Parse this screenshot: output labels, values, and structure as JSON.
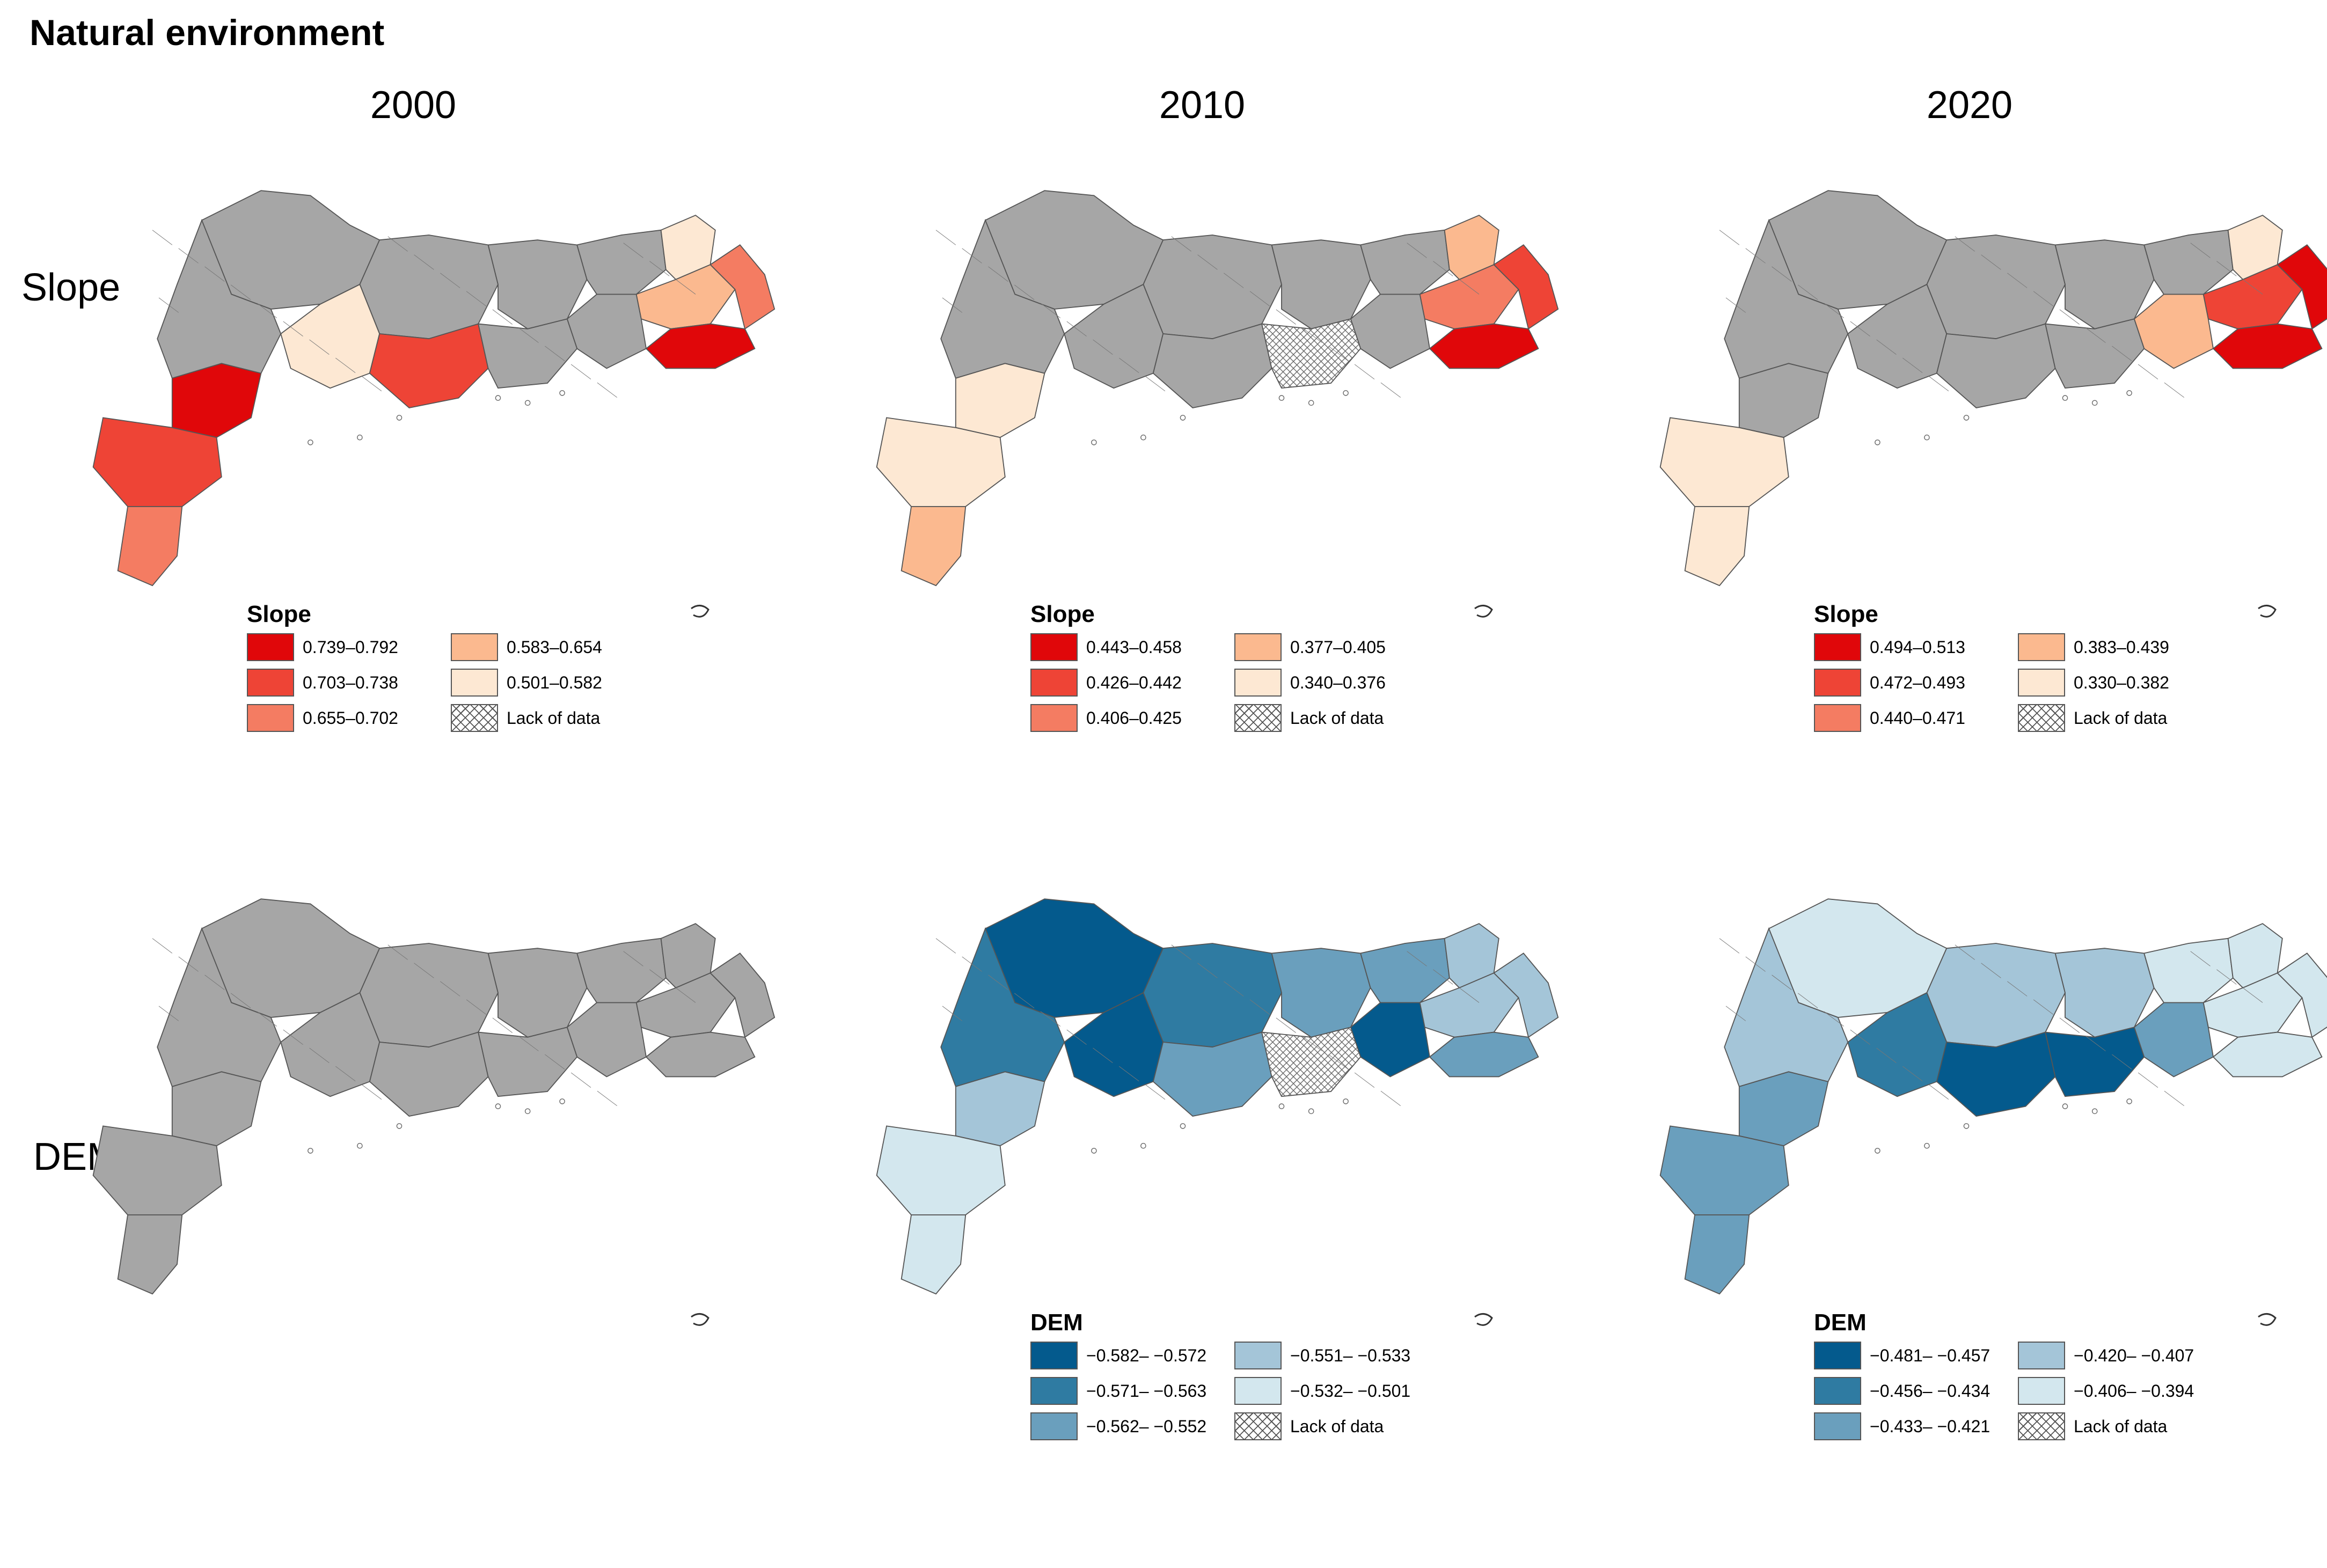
{
  "figure": {
    "title": "Natural environment"
  },
  "columns": [
    "2000",
    "2010",
    "2020"
  ],
  "rows": [
    "Slope",
    "DEM"
  ],
  "colors": {
    "no_data_fill": "#a6a6a6",
    "border": "#555555",
    "slope_ramp": [
      "#e0070a",
      "#ee4436",
      "#f47c62",
      "#fbb98f",
      "#fde8d3"
    ],
    "dem_ramp": [
      "#045a8d",
      "#2f7ba2",
      "#6a9fbd",
      "#a4c5d8",
      "#d3e7ee"
    ]
  },
  "panels": [
    {
      "id": "slope-2000",
      "legend": {
        "title": "Slope",
        "items": [
          {
            "label": "0.739–0.792",
            "color": "#e0070a"
          },
          {
            "label": "0.583–0.654",
            "color": "#fbb98f"
          },
          {
            "label": "0.703–0.738",
            "color": "#ee4436"
          },
          {
            "label": "0.501–0.582",
            "color": "#fde8d3"
          },
          {
            "label": "0.655–0.702",
            "color": "#f47c62"
          },
          {
            "label": "Lack of data",
            "color": "hatch"
          }
        ]
      },
      "coloring": [
        "#a6a6a6",
        "#a6a6a6",
        "#a6a6a6",
        "#a6a6a6",
        "#fde8d3",
        "#fbb98f",
        "#f47c62",
        "#e0070a",
        "#a6a6a6",
        "#fde8d3",
        "#ee4436",
        "#e0070a",
        "#ee4436",
        "#f47c62",
        "#a6a6a6",
        "#a6a6a6"
      ]
    },
    {
      "id": "slope-2010",
      "legend": {
        "title": "Slope",
        "items": [
          {
            "label": "0.443–0.458",
            "color": "#e0070a"
          },
          {
            "label": "0.377–0.405",
            "color": "#fbb98f"
          },
          {
            "label": "0.426–0.442",
            "color": "#ee4436"
          },
          {
            "label": "0.340–0.376",
            "color": "#fde8d3"
          },
          {
            "label": "0.406–0.425",
            "color": "#f47c62"
          },
          {
            "label": "Lack of data",
            "color": "hatch"
          }
        ]
      },
      "coloring": [
        "#a6a6a6",
        "#a6a6a6",
        "#a6a6a6",
        "#a6a6a6",
        "#fbb98f",
        "#f47c62",
        "#ee4436",
        "#e0070a",
        "#a6a6a6",
        "#a6a6a6",
        "#a6a6a6",
        "#fde8d3",
        "#fde8d3",
        "#fbb98f",
        "#a6a6a6",
        "hatch"
      ]
    },
    {
      "id": "slope-2020",
      "legend": {
        "title": "Slope",
        "items": [
          {
            "label": "0.494–0.513",
            "color": "#e0070a"
          },
          {
            "label": "0.383–0.439",
            "color": "#fbb98f"
          },
          {
            "label": "0.472–0.493",
            "color": "#ee4436"
          },
          {
            "label": "0.330–0.382",
            "color": "#fde8d3"
          },
          {
            "label": "0.440–0.471",
            "color": "#f47c62"
          },
          {
            "label": "Lack of data",
            "color": "hatch"
          }
        ]
      },
      "coloring": [
        "#a6a6a6",
        "#a6a6a6",
        "#a6a6a6",
        "#a6a6a6",
        "#fde8d3",
        "#ee4436",
        "#e0070a",
        "#e0070a",
        "#fbb98f",
        "#a6a6a6",
        "#a6a6a6",
        "#a6a6a6",
        "#fde8d3",
        "#fde8d3",
        "#a6a6a6",
        "#a6a6a6"
      ]
    },
    {
      "id": "dem-2000",
      "legend": null,
      "coloring": [
        "#a6a6a6",
        "#a6a6a6",
        "#a6a6a6",
        "#a6a6a6",
        "#a6a6a6",
        "#a6a6a6",
        "#a6a6a6",
        "#a6a6a6",
        "#a6a6a6",
        "#a6a6a6",
        "#a6a6a6",
        "#a6a6a6",
        "#a6a6a6",
        "#a6a6a6",
        "#a6a6a6",
        "#a6a6a6"
      ]
    },
    {
      "id": "dem-2010",
      "legend": {
        "title": "DEM",
        "items": [
          {
            "label": "−0.582– −0.572",
            "color": "#045a8d"
          },
          {
            "label": "−0.551– −0.533",
            "color": "#a4c5d8"
          },
          {
            "label": "−0.571– −0.563",
            "color": "#2f7ba2"
          },
          {
            "label": "−0.532– −0.501",
            "color": "#d3e7ee"
          },
          {
            "label": "−0.562– −0.552",
            "color": "#6a9fbd"
          },
          {
            "label": "Lack of data",
            "color": "hatch"
          }
        ]
      },
      "coloring": [
        "#045a8d",
        "#2f7ba2",
        "#6a9fbd",
        "#6a9fbd",
        "#a4c5d8",
        "#a4c5d8",
        "#a4c5d8",
        "#6a9fbd",
        "#045a8d",
        "#045a8d",
        "#6a9fbd",
        "#a4c5d8",
        "#d3e7ee",
        "#d3e7ee",
        "#2f7ba2",
        "hatch"
      ]
    },
    {
      "id": "dem-2020",
      "legend": {
        "title": "DEM",
        "items": [
          {
            "label": "−0.481– −0.457",
            "color": "#045a8d"
          },
          {
            "label": "−0.420– −0.407",
            "color": "#a4c5d8"
          },
          {
            "label": "−0.456– −0.434",
            "color": "#2f7ba2"
          },
          {
            "label": "−0.406– −0.394",
            "color": "#d3e7ee"
          },
          {
            "label": "−0.433– −0.421",
            "color": "#6a9fbd"
          },
          {
            "label": "Lack of data",
            "color": "hatch"
          }
        ]
      },
      "coloring": [
        "#d3e7ee",
        "#a4c5d8",
        "#a4c5d8",
        "#d3e7ee",
        "#d3e7ee",
        "#d3e7ee",
        "#d3e7ee",
        "#d3e7ee",
        "#6a9fbd",
        "#2f7ba2",
        "#045a8d",
        "#6a9fbd",
        "#6a9fbd",
        "#6a9fbd",
        "#a4c5d8",
        "#045a8d"
      ]
    }
  ]
}
